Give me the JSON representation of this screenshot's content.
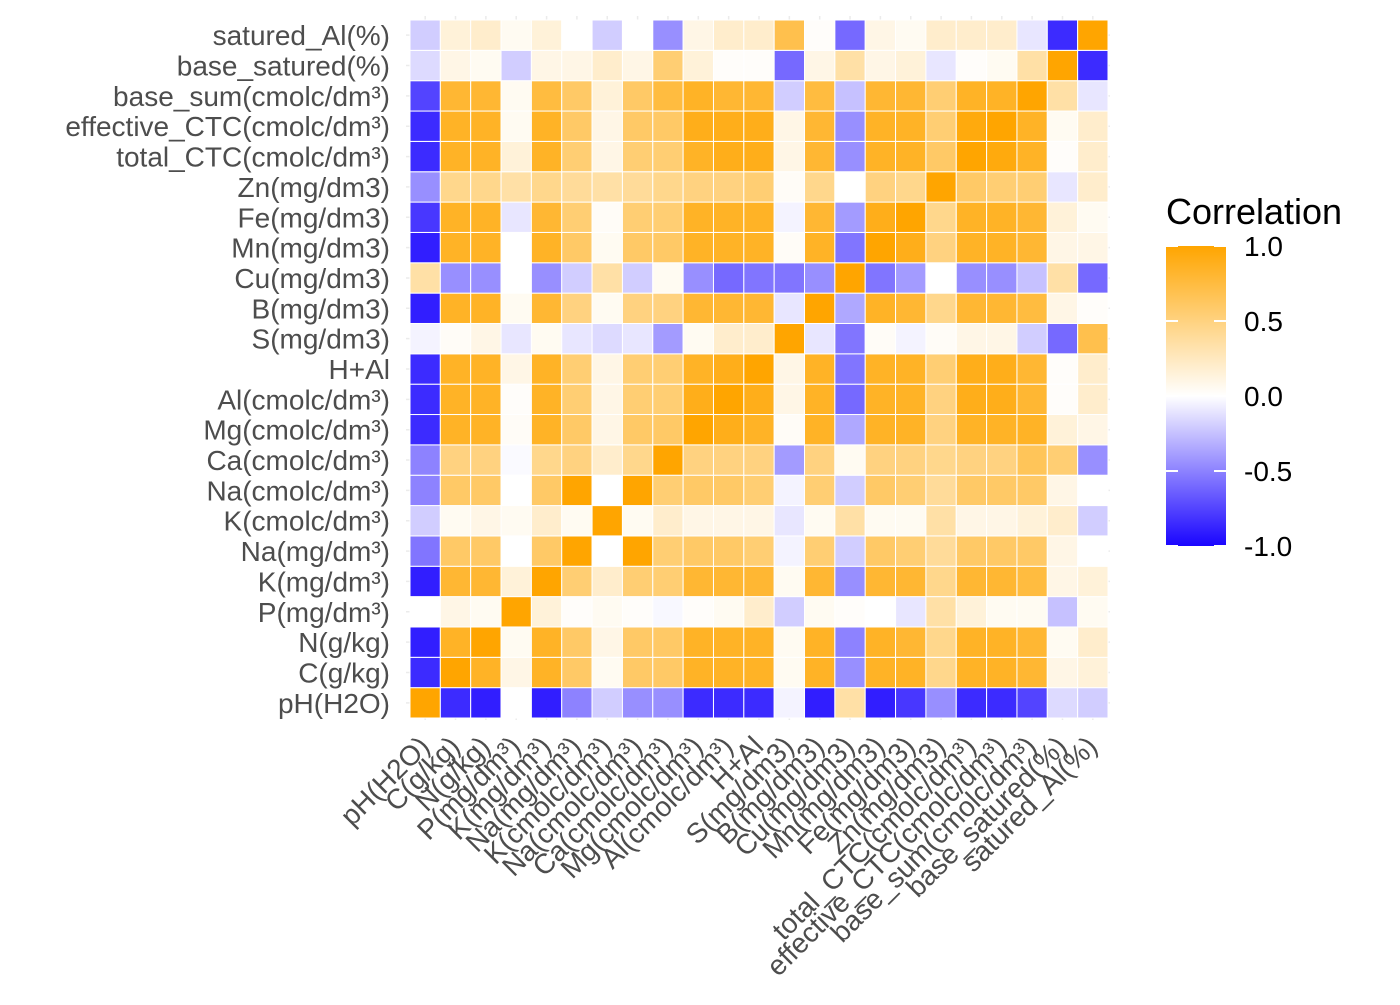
{
  "chart_data": {
    "type": "heatmap",
    "title": "",
    "xlabel": "",
    "ylabel": "",
    "variables": [
      "pH(H2O)",
      "C(g/kg)",
      "N(g/kg)",
      "P(mg/dm³)",
      "K(mg/dm³)",
      "Na(mg/dm³)",
      "K(cmolc/dm³)",
      "Na(cmolc/dm³)",
      "Ca(cmolc/dm³)",
      "Mg(cmolc/dm³)",
      "Al(cmolc/dm³)",
      "H+Al",
      "S(mg/dm3)",
      "B(mg/dm3)",
      "Cu(mg/dm3)",
      "Mn(mg/dm3)",
      "Fe(mg/dm3)",
      "Zn(mg/dm3)",
      "total_CTC(cmolc/dm³)",
      "effective_CTC(cmolc/dm³)",
      "base_sum(cmolc/dm³)",
      "base_satured(%)",
      "satured_Al(%)"
    ],
    "matrix": [
      [
        1.0,
        -0.85,
        -0.9,
        0.0,
        -0.9,
        -0.5,
        -0.2,
        -0.45,
        -0.45,
        -0.85,
        -0.85,
        -0.85,
        -0.05,
        -0.9,
        0.35,
        -0.9,
        -0.8,
        -0.45,
        -0.85,
        -0.85,
        -0.75,
        -0.15,
        -0.2
      ],
      [
        -0.85,
        1.0,
        0.85,
        0.1,
        0.85,
        0.6,
        0.05,
        0.6,
        0.6,
        0.85,
        0.85,
        0.85,
        0.05,
        0.85,
        -0.45,
        0.85,
        0.85,
        0.45,
        0.85,
        0.85,
        0.8,
        0.1,
        0.15
      ],
      [
        -0.9,
        0.85,
        1.0,
        0.05,
        0.85,
        0.6,
        0.1,
        0.6,
        0.6,
        0.85,
        0.85,
        0.85,
        0.05,
        0.85,
        -0.5,
        0.85,
        0.8,
        0.45,
        0.85,
        0.85,
        0.8,
        0.05,
        0.2
      ],
      [
        0.0,
        0.1,
        0.05,
        1.0,
        0.15,
        0.02,
        0.05,
        0.02,
        -0.03,
        0.02,
        0.05,
        0.2,
        -0.2,
        0.05,
        0.02,
        0.0,
        -0.1,
        0.35,
        0.15,
        0.05,
        0.05,
        -0.25,
        0.05
      ],
      [
        -0.9,
        0.8,
        0.8,
        0.15,
        1.0,
        0.55,
        0.2,
        0.55,
        0.55,
        0.8,
        0.8,
        0.8,
        0.05,
        0.8,
        -0.45,
        0.8,
        0.8,
        0.45,
        0.8,
        0.8,
        0.75,
        0.1,
        0.15
      ],
      [
        -0.55,
        0.6,
        0.6,
        0.0,
        0.6,
        1.0,
        0.0,
        1.0,
        0.55,
        0.6,
        0.6,
        0.55,
        -0.05,
        0.55,
        -0.2,
        0.6,
        0.55,
        0.4,
        0.6,
        0.6,
        0.6,
        0.1,
        0.0
      ],
      [
        -0.2,
        0.05,
        0.1,
        0.05,
        0.2,
        0.05,
        1.0,
        0.05,
        0.2,
        0.1,
        0.1,
        0.1,
        -0.1,
        0.05,
        0.35,
        0.05,
        0.05,
        0.35,
        0.1,
        0.1,
        0.15,
        0.2,
        -0.2
      ],
      [
        -0.5,
        0.6,
        0.6,
        0.0,
        0.6,
        1.0,
        0.0,
        1.0,
        0.55,
        0.6,
        0.6,
        0.55,
        -0.05,
        0.55,
        -0.2,
        0.6,
        0.55,
        0.4,
        0.6,
        0.6,
        0.6,
        0.1,
        0.0
      ],
      [
        -0.5,
        0.5,
        0.5,
        -0.02,
        0.45,
        0.5,
        0.2,
        0.45,
        1.0,
        0.5,
        0.5,
        0.5,
        -0.4,
        0.5,
        0.05,
        0.5,
        0.5,
        0.45,
        0.5,
        0.5,
        0.65,
        0.55,
        -0.45
      ],
      [
        -0.85,
        0.85,
        0.85,
        0.03,
        0.85,
        0.6,
        0.1,
        0.6,
        0.6,
        1.0,
        0.9,
        0.85,
        0.03,
        0.85,
        -0.35,
        0.85,
        0.85,
        0.5,
        0.85,
        0.85,
        0.85,
        0.15,
        0.1
      ],
      [
        -0.85,
        0.85,
        0.85,
        0.02,
        0.85,
        0.55,
        0.1,
        0.55,
        0.55,
        0.9,
        1.0,
        0.9,
        0.1,
        0.85,
        -0.6,
        0.85,
        0.85,
        0.5,
        0.9,
        0.9,
        0.8,
        0.02,
        0.2
      ],
      [
        -0.85,
        0.85,
        0.85,
        0.1,
        0.85,
        0.55,
        0.1,
        0.55,
        0.55,
        0.85,
        0.9,
        1.0,
        0.1,
        0.85,
        -0.55,
        0.85,
        0.85,
        0.55,
        0.9,
        0.9,
        0.8,
        0.02,
        0.2
      ],
      [
        -0.05,
        0.03,
        0.1,
        -0.1,
        0.05,
        -0.1,
        -0.15,
        -0.1,
        -0.4,
        0.05,
        0.2,
        0.2,
        1.0,
        -0.1,
        -0.55,
        0.03,
        -0.05,
        0.03,
        0.1,
        0.1,
        -0.2,
        -0.6,
        0.7
      ],
      [
        -0.9,
        0.85,
        0.85,
        0.05,
        0.8,
        0.5,
        0.05,
        0.5,
        0.5,
        0.8,
        0.8,
        0.8,
        -0.1,
        1.0,
        -0.35,
        0.85,
        0.8,
        0.45,
        0.8,
        0.8,
        0.75,
        0.1,
        0.02
      ],
      [
        0.35,
        -0.45,
        -0.45,
        0.0,
        -0.45,
        -0.2,
        0.35,
        -0.2,
        0.05,
        -0.45,
        -0.6,
        -0.55,
        -0.55,
        -0.45,
        1.0,
        -0.55,
        -0.4,
        0.0,
        -0.45,
        -0.45,
        -0.25,
        0.35,
        -0.6
      ],
      [
        -0.9,
        0.85,
        0.85,
        0.0,
        0.85,
        0.6,
        0.05,
        0.6,
        0.6,
        0.85,
        0.85,
        0.85,
        0.03,
        0.85,
        -0.55,
        1.0,
        0.9,
        0.5,
        0.85,
        0.85,
        0.8,
        0.1,
        0.1
      ],
      [
        -0.8,
        0.85,
        0.85,
        -0.1,
        0.8,
        0.55,
        0.03,
        0.55,
        0.55,
        0.85,
        0.85,
        0.85,
        -0.05,
        0.8,
        -0.4,
        0.9,
        1.0,
        0.45,
        0.85,
        0.85,
        0.8,
        0.15,
        0.05
      ],
      [
        -0.45,
        0.45,
        0.45,
        0.35,
        0.45,
        0.4,
        0.35,
        0.4,
        0.45,
        0.5,
        0.5,
        0.55,
        0.03,
        0.45,
        0.0,
        0.5,
        0.45,
        1.0,
        0.6,
        0.55,
        0.55,
        -0.1,
        0.2
      ],
      [
        -0.85,
        0.85,
        0.85,
        0.15,
        0.85,
        0.55,
        0.1,
        0.55,
        0.55,
        0.85,
        0.9,
        0.9,
        0.1,
        0.8,
        -0.45,
        0.85,
        0.85,
        0.6,
        1.0,
        0.95,
        0.85,
        0.02,
        0.2
      ],
      [
        -0.85,
        0.85,
        0.85,
        0.05,
        0.85,
        0.6,
        0.1,
        0.6,
        0.6,
        0.9,
        0.9,
        0.9,
        0.1,
        0.8,
        -0.45,
        0.85,
        0.85,
        0.55,
        0.95,
        1.0,
        0.85,
        0.05,
        0.2
      ],
      [
        -0.75,
        0.8,
        0.8,
        0.05,
        0.75,
        0.6,
        0.15,
        0.6,
        0.75,
        0.85,
        0.8,
        0.8,
        -0.2,
        0.75,
        -0.25,
        0.8,
        0.8,
        0.55,
        0.85,
        0.85,
        1.0,
        0.35,
        -0.1
      ],
      [
        -0.15,
        0.1,
        0.05,
        -0.2,
        0.1,
        0.1,
        0.2,
        0.1,
        0.55,
        0.15,
        0.02,
        0.02,
        -0.6,
        0.1,
        0.35,
        0.1,
        0.15,
        -0.1,
        0.02,
        0.05,
        0.35,
        1.0,
        -0.85
      ],
      [
        -0.2,
        0.15,
        0.2,
        0.05,
        0.15,
        0.0,
        -0.2,
        0.0,
        -0.45,
        0.1,
        0.2,
        0.2,
        0.7,
        0.02,
        -0.6,
        0.1,
        0.05,
        0.2,
        0.2,
        0.2,
        -0.1,
        -0.85,
        1.0
      ]
    ],
    "legend": {
      "title": "Correlation",
      "ticks": [
        "1.0",
        "0.5",
        "0.0",
        "-0.5",
        "-1.0"
      ],
      "range": [
        -1,
        1
      ],
      "placement": "right"
    },
    "colors": {
      "low": "#1a05ff",
      "mid": "#ffffff",
      "high": "#ffa500"
    },
    "grid": true
  }
}
